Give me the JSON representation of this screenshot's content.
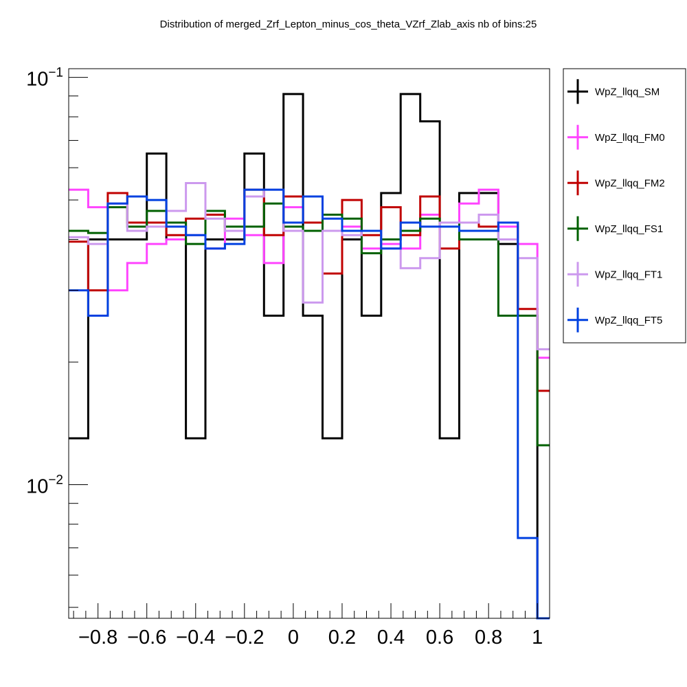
{
  "chart_data": {
    "type": "line",
    "title": "Distribution of merged_Zrf_Lepton_minus_cos_theta_VZrf_Zlab_axis nb of bins:25",
    "xlabel": "",
    "ylabel": "",
    "xlim": [
      -0.92,
      1.05
    ],
    "ylim": [
      0.0047,
      0.105
    ],
    "log_y": true,
    "grid": false,
    "legend_placement": "right",
    "x_ticks": [
      "−0.8",
      "−0.6",
      "−0.4",
      "−0.2",
      "0",
      "0.2",
      "0.4",
      "0.6",
      "0.8",
      "1"
    ],
    "x_tick_values": [
      -0.8,
      -0.6,
      -0.4,
      -0.2,
      0,
      0.2,
      0.4,
      0.6,
      0.8,
      1
    ],
    "y_ticks": [
      {
        "base": "10",
        "exp": "−1",
        "value": 0.1
      },
      {
        "base": "10",
        "exp": "−2",
        "value": 0.01
      }
    ],
    "bin_edges": [
      -0.92,
      -0.84,
      -0.76,
      -0.68,
      -0.6,
      -0.52,
      -0.44,
      -0.36,
      -0.28,
      -0.2,
      -0.12,
      -0.04,
      0.04,
      0.12,
      0.2,
      0.28,
      0.36,
      0.44,
      0.52,
      0.6,
      0.68,
      0.76,
      0.84,
      0.92,
      1.0,
      1.08
    ],
    "series": [
      {
        "name": "WpZ_llqq_SM",
        "color": "#000000",
        "values": [
          0.013,
          0.04,
          0.04,
          0.04,
          0.065,
          0.04,
          0.013,
          0.04,
          0.04,
          0.065,
          0.026,
          0.091,
          0.026,
          0.013,
          0.04,
          0.026,
          0.052,
          0.091,
          0.078,
          0.013,
          0.052,
          0.052,
          0.039,
          0.026,
          0.001
        ]
      },
      {
        "name": "WpZ_llqq_FM0",
        "color": "#ff44ff",
        "values": [
          0.053,
          0.048,
          0.03,
          0.035,
          0.039,
          0.04,
          0.041,
          0.038,
          0.045,
          0.041,
          0.035,
          0.048,
          0.044,
          0.046,
          0.043,
          0.038,
          0.039,
          0.038,
          0.046,
          0.044,
          0.049,
          0.053,
          0.043,
          0.039,
          0.0205
        ]
      },
      {
        "name": "WpZ_llqq_FM2",
        "color": "#c00000",
        "values": [
          0.0395,
          0.03,
          0.052,
          0.044,
          0.044,
          0.041,
          0.045,
          0.046,
          0.042,
          0.053,
          0.041,
          0.051,
          0.044,
          0.033,
          0.05,
          0.041,
          0.048,
          0.041,
          0.051,
          0.038,
          0.044,
          0.043,
          0.044,
          0.027,
          0.017
        ]
      },
      {
        "name": "WpZ_llqq_FS1",
        "color": "#006000",
        "values": [
          0.042,
          0.0415,
          0.048,
          0.043,
          0.047,
          0.044,
          0.039,
          0.047,
          0.043,
          0.043,
          0.049,
          0.043,
          0.042,
          0.046,
          0.045,
          0.037,
          0.04,
          0.042,
          0.045,
          0.044,
          0.04,
          0.04,
          0.026,
          0.026,
          0.0125
        ]
      },
      {
        "name": "WpZ_llqq_FT1",
        "color": "#cc99ee",
        "values": [
          0.0405,
          0.039,
          0.049,
          0.042,
          0.043,
          0.047,
          0.055,
          0.045,
          0.042,
          0.051,
          0.053,
          0.042,
          0.028,
          0.042,
          0.041,
          0.042,
          0.038,
          0.034,
          0.036,
          0.044,
          0.044,
          0.046,
          0.04,
          0.036,
          0.0215
        ]
      },
      {
        "name": "WpZ_llqq_FT5",
        "color": "#0040e0",
        "values": [
          0.03,
          0.026,
          0.049,
          0.051,
          0.05,
          0.043,
          0.041,
          0.038,
          0.039,
          0.053,
          0.053,
          0.044,
          0.051,
          0.045,
          0.042,
          0.042,
          0.038,
          0.044,
          0.043,
          0.043,
          0.042,
          0.042,
          0.044,
          0.0074,
          0.001
        ]
      }
    ]
  }
}
